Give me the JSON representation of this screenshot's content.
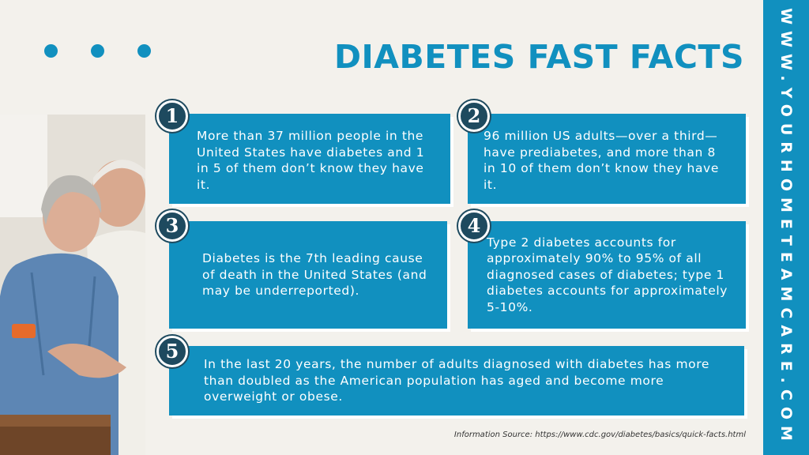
{
  "title": "DIABETES FAST FACTS",
  "side_url": "WWW.YOURHOMETEAMCARE.COM",
  "facts": [
    {
      "number": "1",
      "text": "More than 37 million people in the United States have diabetes and 1 in 5 of them don’t know they have it."
    },
    {
      "number": "2",
      "text": "96 million US adults—over a third—have prediabetes, and more than 8 in 10 of them don’t know they have it."
    },
    {
      "number": "3",
      "text": "Diabetes is the 7th leading cause of death in the United States (and may be underreported)."
    },
    {
      "number": "4",
      "text": "Type 2 diabetes accounts for approximately 90% to 95% of all diagnosed cases of diabetes; type 1 diabetes accounts for approximately 5-10%."
    },
    {
      "number": "5",
      "text": "In the last 20 years, the number of adults diagnosed with diabetes has more than doubled as the American population has aged and become more overweight or obese."
    }
  ],
  "source": "Information Source: https://www.cdc.gov/diabetes/basics/quick-facts.html",
  "colors": {
    "accent": "#1190bf",
    "badge": "#1e4a5f",
    "background": "#f3f1ec"
  }
}
